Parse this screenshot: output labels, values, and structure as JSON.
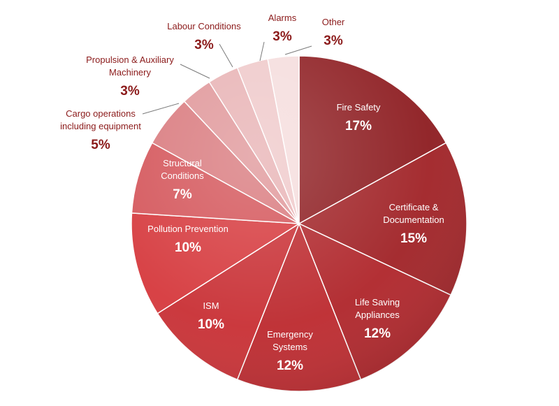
{
  "chart_data": {
    "type": "pie",
    "title": "",
    "start_angle_deg": 0,
    "direction": "clockwise",
    "legend": "none",
    "slices": [
      {
        "label": "Fire Safety",
        "value": 17,
        "display": "17%",
        "color": "#8e1e22"
      },
      {
        "label": "Certificate & Documentation",
        "value": 15,
        "display": "15%",
        "color": "#a12428"
      },
      {
        "label": "Life Saving Appliances",
        "value": 12,
        "display": "12%",
        "color": "#b0272c"
      },
      {
        "label": "Emergency Systems",
        "value": 12,
        "display": "12%",
        "color": "#bd2b30"
      },
      {
        "label": "ISM",
        "value": 10,
        "display": "10%",
        "color": "#c93136"
      },
      {
        "label": "Pollution Prevention",
        "value": 10,
        "display": "10%",
        "color": "#d63a3e"
      },
      {
        "label": "Structural Conditions",
        "value": 7,
        "display": "7%",
        "color": "#d4555a"
      },
      {
        "label": "Cargo operations including equipment",
        "value": 5,
        "display": "5%",
        "color": "#d97a7e"
      },
      {
        "label": "Propulsion & Auxiliary Machinery",
        "value": 3,
        "display": "3%",
        "color": "#e0979a"
      },
      {
        "label": "Labour Conditions",
        "value": 3,
        "display": "3%",
        "color": "#e8b3b5"
      },
      {
        "label": "Alarms",
        "value": 3,
        "display": "3%",
        "color": "#efc9ca"
      },
      {
        "label": "Other",
        "value": 3,
        "display": "3%",
        "color": "#f5dddd"
      }
    ]
  }
}
